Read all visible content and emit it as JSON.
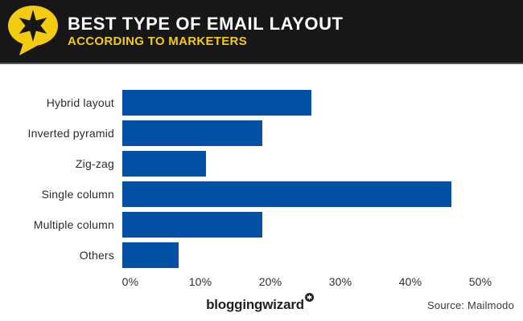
{
  "header": {
    "title": "BEST TYPE OF EMAIL LAYOUT",
    "subtitle": "ACCORDING TO MARKETERS"
  },
  "colors": {
    "header_bg": "#171717",
    "header_divider": "#57585c",
    "accent_yellow": "#f3cc12",
    "bar_blue": "#0450a5",
    "text_dark": "#2b2b2b"
  },
  "chart_data": {
    "type": "bar",
    "orientation": "horizontal",
    "title": "Best type of email layout according to marketers",
    "categories": [
      "Hybrid layout",
      "Inverted pyramid",
      "Zig-zag",
      "Single column",
      "Multiple column",
      "Others"
    ],
    "values": [
      27,
      20,
      12,
      47,
      20,
      8
    ],
    "unit": "%",
    "xlabel": "",
    "ylabel": "",
    "xlim": [
      0,
      50
    ],
    "x_ticks": [
      "0%",
      "10%",
      "20%",
      "30%",
      "40%",
      "50%"
    ],
    "grid": false,
    "legend": false,
    "bar_color": "#0450a5"
  },
  "footer": {
    "brand": "bloggingwizard",
    "source": "Source: Mailmodo"
  }
}
